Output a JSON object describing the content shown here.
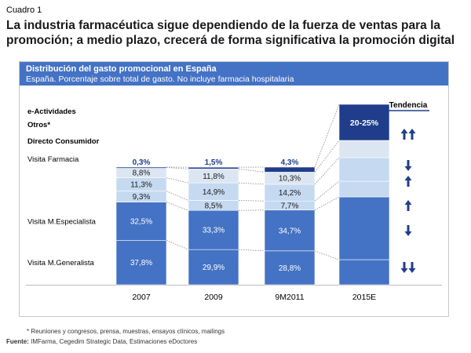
{
  "header": {
    "label": "Cuadro 1",
    "title": "La industria farmacéutica sigue dependiendo de la fuerza de ventas para la promoción; a medio plazo, crecerá de forma significativa la promoción digital"
  },
  "panel": {
    "title": "Distribución del gasto promocional en España",
    "subtitle": "España. Porcentaje sobre total de gasto. No incluye farmacia hospitalaria"
  },
  "colors": {
    "mid_blue": "#4472c4",
    "light_blue": "#c5d9f1",
    "pale_blue": "#dce6f2",
    "dark_navy": "#1f3d8a",
    "grid_line": "#d0d0d0"
  },
  "chart_data": {
    "type": "bar",
    "stacked": true,
    "categories": [
      "2007",
      "2009",
      "9M2011",
      "2015E"
    ],
    "series": [
      {
        "name": "Visita M.Generalista",
        "values": [
          37.8,
          29.9,
          28.8,
          null
        ],
        "labels": [
          "37,8%",
          "29,9%",
          "28,8%",
          ""
        ]
      },
      {
        "name": "Visita M.Especialista",
        "values": [
          32.5,
          33.3,
          34.7,
          null
        ],
        "labels": [
          "32,5%",
          "33,3%",
          "34,7%",
          ""
        ]
      },
      {
        "name": "Visita Farmacia",
        "values": [
          9.3,
          8.5,
          7.7,
          null
        ],
        "labels": [
          "9,3%",
          "8,5%",
          "7,7%",
          ""
        ]
      },
      {
        "name": "Directo Consumidor",
        "values": [
          11.3,
          14.9,
          14.2,
          null
        ],
        "labels": [
          "11,3%",
          "14,9%",
          "14,2%",
          ""
        ]
      },
      {
        "name": "Otros*",
        "values": [
          8.8,
          11.8,
          10.3,
          null
        ],
        "labels": [
          "8,8%",
          "11,8%",
          "10,3%",
          ""
        ]
      },
      {
        "name": "e-Actividades",
        "values": [
          0.3,
          1.5,
          4.3,
          null
        ],
        "labels": [
          "0,3%",
          "1,5%",
          "4,3%",
          ""
        ]
      }
    ],
    "projection_2015E": {
      "e_actividades_label": "20-25%"
    },
    "tendencia": {
      "header": "Tendencia",
      "arrows": [
        {
          "series": "e-Actividades / Otros*",
          "direction": "up",
          "strength": "double"
        },
        {
          "series": "Directo Consumidor",
          "direction": "down",
          "strength": "single"
        },
        {
          "series": "Visita Farmacia",
          "direction": "up",
          "strength": "single"
        },
        {
          "series": "Visita M.Especialista",
          "direction": "up",
          "strength": "single"
        },
        {
          "series": "Visita M.Generalista (upper)",
          "direction": "down",
          "strength": "single"
        },
        {
          "series": "Visita M.Generalista",
          "direction": "down",
          "strength": "double"
        }
      ]
    }
  },
  "footnote": "*   Reuniones y congresos, prensa, muestras, ensayos clínicos, mailings",
  "source": {
    "label": "Fuente:",
    "text": "IMFarma, Cegedim Strategic Data, Estimaciones eDoctores"
  }
}
